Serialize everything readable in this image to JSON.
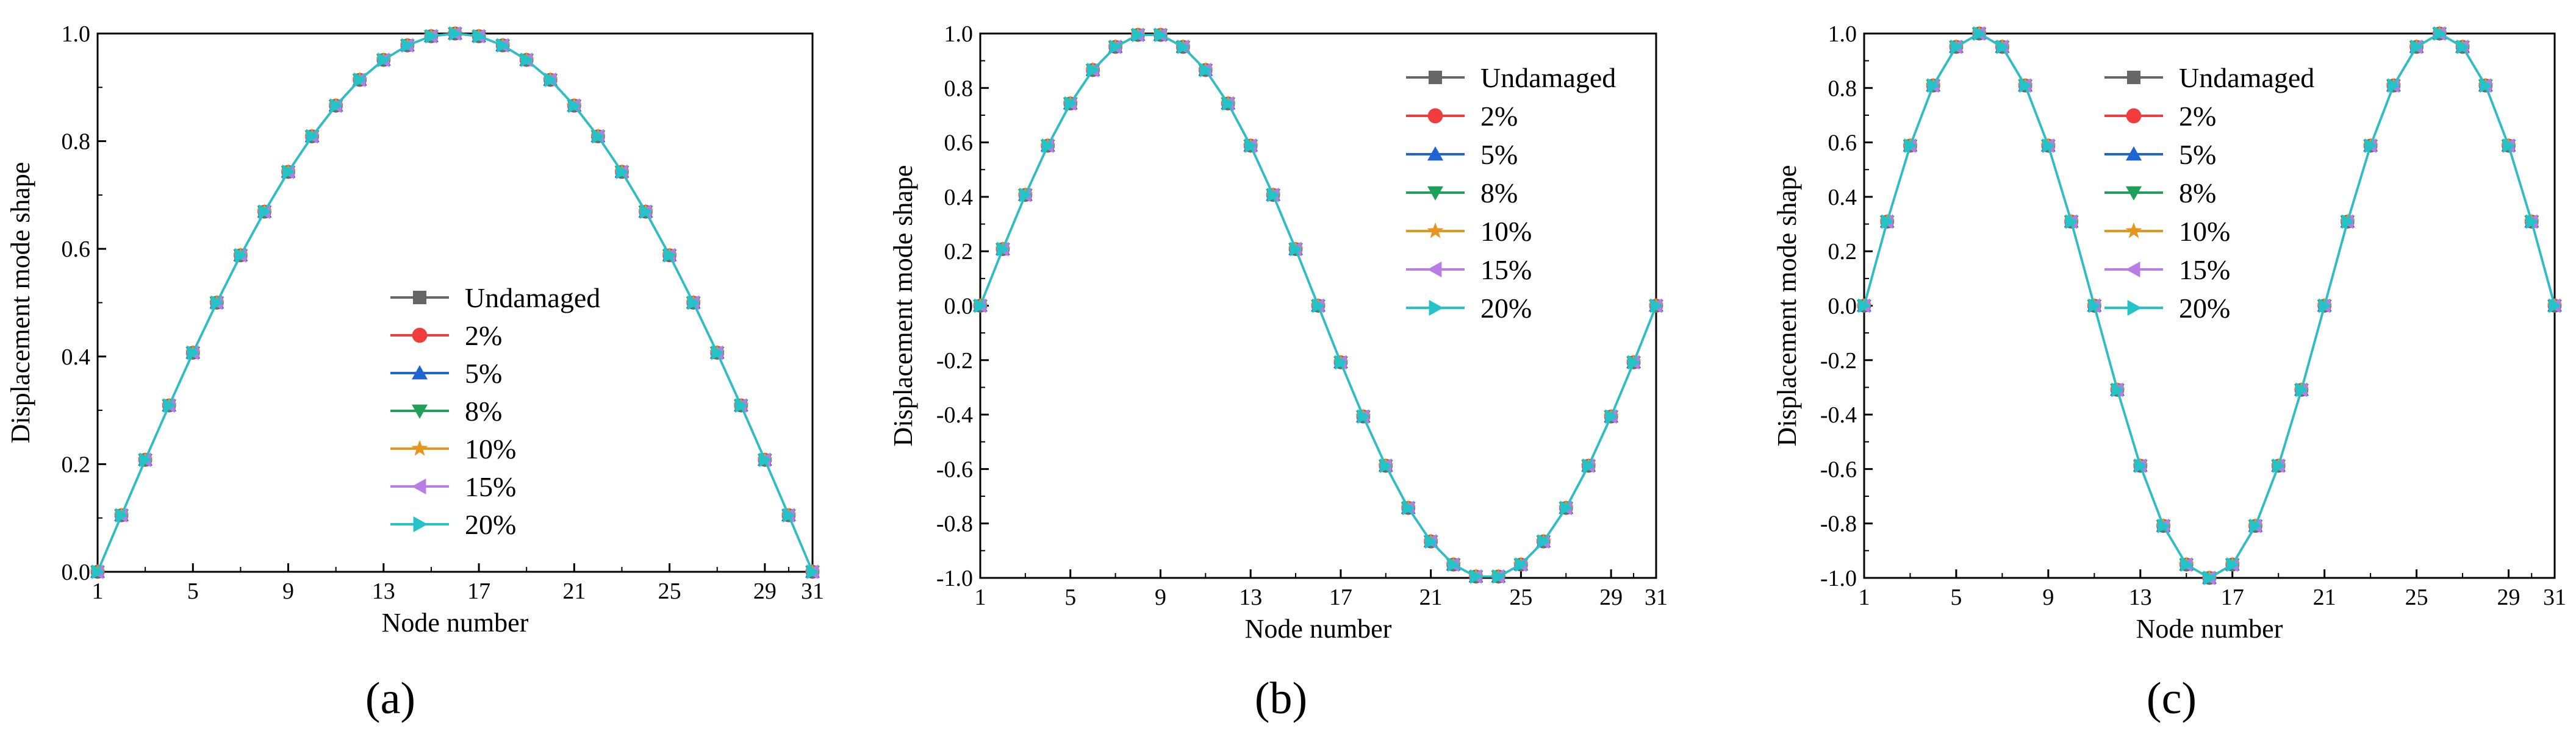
{
  "figure": {
    "panel_labels": [
      "(a)",
      "(b)",
      "(c)"
    ]
  },
  "chart_data": [
    {
      "type": "line",
      "panel": "(a)",
      "xlabel": "Node number",
      "ylabel": "Displacement mode shape",
      "xlim": [
        1,
        31
      ],
      "ylim": [
        0.0,
        1.0
      ],
      "xticks": [
        1,
        5,
        9,
        13,
        17,
        21,
        25,
        29,
        31
      ],
      "yticks": [
        0.0,
        0.2,
        0.4,
        0.6,
        0.8,
        1.0
      ],
      "ytick_labels": [
        "0.0",
        "0.2",
        "0.4",
        "0.6",
        "0.8",
        "1.0"
      ],
      "legend_position": "center-right",
      "x": [
        1,
        2,
        3,
        4,
        5,
        6,
        7,
        8,
        9,
        10,
        11,
        12,
        13,
        14,
        15,
        16,
        17,
        18,
        19,
        20,
        21,
        22,
        23,
        24,
        25,
        26,
        27,
        28,
        29,
        30,
        31
      ],
      "series": [
        {
          "name": "Undamaged",
          "color": "#666666",
          "marker": "square",
          "values": [
            0,
            0.105,
            0.208,
            0.309,
            0.407,
            0.5,
            0.588,
            0.669,
            0.743,
            0.809,
            0.866,
            0.914,
            0.951,
            0.978,
            0.995,
            1.0,
            0.995,
            0.978,
            0.951,
            0.914,
            0.866,
            0.809,
            0.743,
            0.669,
            0.588,
            0.5,
            0.407,
            0.309,
            0.208,
            0.105,
            0
          ]
        },
        {
          "name": "2%",
          "color": "#f03c3c",
          "marker": "circle",
          "values": [
            0,
            0.105,
            0.208,
            0.309,
            0.407,
            0.5,
            0.588,
            0.669,
            0.743,
            0.809,
            0.866,
            0.914,
            0.951,
            0.978,
            0.995,
            1.0,
            0.995,
            0.978,
            0.951,
            0.914,
            0.866,
            0.809,
            0.743,
            0.669,
            0.588,
            0.5,
            0.407,
            0.309,
            0.208,
            0.105,
            0
          ]
        },
        {
          "name": "5%",
          "color": "#1e64d2",
          "marker": "triangle-up",
          "values": [
            0,
            0.105,
            0.208,
            0.309,
            0.407,
            0.5,
            0.588,
            0.669,
            0.743,
            0.809,
            0.866,
            0.914,
            0.951,
            0.978,
            0.995,
            1.0,
            0.995,
            0.978,
            0.951,
            0.914,
            0.866,
            0.809,
            0.743,
            0.669,
            0.588,
            0.5,
            0.407,
            0.309,
            0.208,
            0.105,
            0
          ]
        },
        {
          "name": "8%",
          "color": "#1ea05a",
          "marker": "triangle-down",
          "values": [
            0,
            0.105,
            0.208,
            0.309,
            0.407,
            0.5,
            0.588,
            0.669,
            0.743,
            0.809,
            0.866,
            0.914,
            0.951,
            0.978,
            0.995,
            1.0,
            0.995,
            0.978,
            0.951,
            0.914,
            0.866,
            0.809,
            0.743,
            0.669,
            0.588,
            0.5,
            0.407,
            0.309,
            0.208,
            0.105,
            0
          ]
        },
        {
          "name": "10%",
          "color": "#e6961e",
          "marker": "star",
          "values": [
            0,
            0.105,
            0.208,
            0.309,
            0.407,
            0.5,
            0.588,
            0.669,
            0.743,
            0.809,
            0.866,
            0.914,
            0.951,
            0.978,
            0.995,
            1.0,
            0.995,
            0.978,
            0.951,
            0.914,
            0.866,
            0.809,
            0.743,
            0.669,
            0.588,
            0.5,
            0.407,
            0.309,
            0.208,
            0.105,
            0
          ]
        },
        {
          "name": "15%",
          "color": "#b97ee6",
          "marker": "triangle-left",
          "values": [
            0,
            0.105,
            0.208,
            0.309,
            0.407,
            0.5,
            0.588,
            0.669,
            0.743,
            0.809,
            0.866,
            0.914,
            0.951,
            0.978,
            0.995,
            1.0,
            0.995,
            0.978,
            0.951,
            0.914,
            0.866,
            0.809,
            0.743,
            0.669,
            0.588,
            0.5,
            0.407,
            0.309,
            0.208,
            0.105,
            0
          ]
        },
        {
          "name": "20%",
          "color": "#23c3c8",
          "marker": "triangle-right",
          "values": [
            0,
            0.105,
            0.208,
            0.309,
            0.407,
            0.5,
            0.588,
            0.669,
            0.743,
            0.809,
            0.866,
            0.914,
            0.951,
            0.978,
            0.995,
            1.0,
            0.995,
            0.978,
            0.951,
            0.914,
            0.866,
            0.809,
            0.743,
            0.669,
            0.588,
            0.5,
            0.407,
            0.309,
            0.208,
            0.105,
            0
          ]
        }
      ]
    },
    {
      "type": "line",
      "panel": "(b)",
      "xlabel": "Node number",
      "ylabel": "Displacement mode shape",
      "xlim": [
        1,
        31
      ],
      "ylim": [
        -1.0,
        1.0
      ],
      "xticks": [
        1,
        5,
        9,
        13,
        17,
        21,
        25,
        29,
        31
      ],
      "yticks": [
        -1.0,
        -0.8,
        -0.6,
        -0.4,
        -0.2,
        0.0,
        0.2,
        0.4,
        0.6,
        0.8,
        1.0
      ],
      "ytick_labels": [
        "-1.0",
        "-0.8",
        "-0.6",
        "-0.4",
        "-0.2",
        "0.0",
        "0.2",
        "0.4",
        "0.6",
        "0.8",
        "1.0"
      ],
      "legend_position": "top-right",
      "x": [
        1,
        2,
        3,
        4,
        5,
        6,
        7,
        8,
        9,
        10,
        11,
        12,
        13,
        14,
        15,
        16,
        17,
        18,
        19,
        20,
        21,
        22,
        23,
        24,
        25,
        26,
        27,
        28,
        29,
        30,
        31
      ],
      "series": [
        {
          "name": "Undamaged",
          "color": "#666666",
          "marker": "square",
          "values": [
            0,
            0.208,
            0.407,
            0.588,
            0.743,
            0.866,
            0.951,
            0.995,
            0.995,
            0.951,
            0.866,
            0.743,
            0.588,
            0.407,
            0.208,
            0,
            -0.208,
            -0.407,
            -0.588,
            -0.743,
            -0.866,
            -0.951,
            -0.995,
            -0.995,
            -0.951,
            -0.866,
            -0.743,
            -0.588,
            -0.407,
            -0.208,
            0
          ]
        },
        {
          "name": "2%",
          "color": "#f03c3c",
          "marker": "circle",
          "values": [
            0,
            0.208,
            0.407,
            0.588,
            0.743,
            0.866,
            0.951,
            0.995,
            0.995,
            0.951,
            0.866,
            0.743,
            0.588,
            0.407,
            0.208,
            0,
            -0.208,
            -0.407,
            -0.588,
            -0.743,
            -0.866,
            -0.951,
            -0.995,
            -0.995,
            -0.951,
            -0.866,
            -0.743,
            -0.588,
            -0.407,
            -0.208,
            0
          ]
        },
        {
          "name": "5%",
          "color": "#1e64d2",
          "marker": "triangle-up",
          "values": [
            0,
            0.208,
            0.407,
            0.588,
            0.743,
            0.866,
            0.951,
            0.995,
            0.995,
            0.951,
            0.866,
            0.743,
            0.588,
            0.407,
            0.208,
            0,
            -0.208,
            -0.407,
            -0.588,
            -0.743,
            -0.866,
            -0.951,
            -0.995,
            -0.995,
            -0.951,
            -0.866,
            -0.743,
            -0.588,
            -0.407,
            -0.208,
            0
          ]
        },
        {
          "name": "8%",
          "color": "#1ea05a",
          "marker": "triangle-down",
          "values": [
            0,
            0.208,
            0.407,
            0.588,
            0.743,
            0.866,
            0.951,
            0.995,
            0.995,
            0.951,
            0.866,
            0.743,
            0.588,
            0.407,
            0.208,
            0,
            -0.208,
            -0.407,
            -0.588,
            -0.743,
            -0.866,
            -0.951,
            -0.995,
            -0.995,
            -0.951,
            -0.866,
            -0.743,
            -0.588,
            -0.407,
            -0.208,
            0
          ]
        },
        {
          "name": "10%",
          "color": "#e6961e",
          "marker": "star",
          "values": [
            0,
            0.208,
            0.407,
            0.588,
            0.743,
            0.866,
            0.951,
            0.995,
            0.995,
            0.951,
            0.866,
            0.743,
            0.588,
            0.407,
            0.208,
            0,
            -0.208,
            -0.407,
            -0.588,
            -0.743,
            -0.866,
            -0.951,
            -0.995,
            -0.995,
            -0.951,
            -0.866,
            -0.743,
            -0.588,
            -0.407,
            -0.208,
            0
          ]
        },
        {
          "name": "15%",
          "color": "#b97ee6",
          "marker": "triangle-left",
          "values": [
            0,
            0.208,
            0.407,
            0.588,
            0.743,
            0.866,
            0.951,
            0.995,
            0.995,
            0.951,
            0.866,
            0.743,
            0.588,
            0.407,
            0.208,
            0,
            -0.208,
            -0.407,
            -0.588,
            -0.743,
            -0.866,
            -0.951,
            -0.995,
            -0.995,
            -0.951,
            -0.866,
            -0.743,
            -0.588,
            -0.407,
            -0.208,
            0
          ]
        },
        {
          "name": "20%",
          "color": "#23c3c8",
          "marker": "triangle-right",
          "values": [
            0,
            0.208,
            0.407,
            0.588,
            0.743,
            0.866,
            0.951,
            0.995,
            0.995,
            0.951,
            0.866,
            0.743,
            0.588,
            0.407,
            0.208,
            0,
            -0.208,
            -0.407,
            -0.588,
            -0.743,
            -0.866,
            -0.951,
            -0.995,
            -0.995,
            -0.951,
            -0.866,
            -0.743,
            -0.588,
            -0.407,
            -0.208,
            0
          ]
        }
      ]
    },
    {
      "type": "line",
      "panel": "(c)",
      "xlabel": "Node number",
      "ylabel": "Displacement mode shape",
      "xlim": [
        1,
        31
      ],
      "ylim": [
        -1.0,
        1.0
      ],
      "xticks": [
        1,
        5,
        9,
        13,
        17,
        21,
        25,
        29,
        31
      ],
      "yticks": [
        -1.0,
        -0.8,
        -0.6,
        -0.4,
        -0.2,
        0.0,
        0.2,
        0.4,
        0.6,
        0.8,
        1.0
      ],
      "ytick_labels": [
        "-1.0",
        "-0.8",
        "-0.6",
        "-0.4",
        "-0.2",
        "0.0",
        "0.2",
        "0.4",
        "0.6",
        "0.8",
        "1.0"
      ],
      "legend_position": "top-right",
      "x": [
        1,
        2,
        3,
        4,
        5,
        6,
        7,
        8,
        9,
        10,
        11,
        12,
        13,
        14,
        15,
        16,
        17,
        18,
        19,
        20,
        21,
        22,
        23,
        24,
        25,
        26,
        27,
        28,
        29,
        30,
        31
      ],
      "series": [
        {
          "name": "Undamaged",
          "color": "#666666",
          "marker": "square",
          "values": [
            0,
            0.309,
            0.588,
            0.809,
            0.951,
            1.0,
            0.951,
            0.809,
            0.588,
            0.309,
            0,
            -0.309,
            -0.588,
            -0.809,
            -0.951,
            -1.0,
            -0.951,
            -0.809,
            -0.588,
            -0.309,
            0,
            0.309,
            0.588,
            0.809,
            0.951,
            1.0,
            0.951,
            0.809,
            0.588,
            0.309,
            0
          ]
        },
        {
          "name": "2%",
          "color": "#f03c3c",
          "marker": "circle",
          "values": [
            0,
            0.309,
            0.588,
            0.809,
            0.951,
            1.0,
            0.951,
            0.809,
            0.588,
            0.309,
            0,
            -0.309,
            -0.588,
            -0.809,
            -0.951,
            -1.0,
            -0.951,
            -0.809,
            -0.588,
            -0.309,
            0,
            0.309,
            0.588,
            0.809,
            0.951,
            1.0,
            0.951,
            0.809,
            0.588,
            0.309,
            0
          ]
        },
        {
          "name": "5%",
          "color": "#1e64d2",
          "marker": "triangle-up",
          "values": [
            0,
            0.309,
            0.588,
            0.809,
            0.951,
            1.0,
            0.951,
            0.809,
            0.588,
            0.309,
            0,
            -0.309,
            -0.588,
            -0.809,
            -0.951,
            -1.0,
            -0.951,
            -0.809,
            -0.588,
            -0.309,
            0,
            0.309,
            0.588,
            0.809,
            0.951,
            1.0,
            0.951,
            0.809,
            0.588,
            0.309,
            0
          ]
        },
        {
          "name": "8%",
          "color": "#1ea05a",
          "marker": "triangle-down",
          "values": [
            0,
            0.309,
            0.588,
            0.809,
            0.951,
            1.0,
            0.951,
            0.809,
            0.588,
            0.309,
            0,
            -0.309,
            -0.588,
            -0.809,
            -0.951,
            -1.0,
            -0.951,
            -0.809,
            -0.588,
            -0.309,
            0,
            0.309,
            0.588,
            0.809,
            0.951,
            1.0,
            0.951,
            0.809,
            0.588,
            0.309,
            0
          ]
        },
        {
          "name": "10%",
          "color": "#e6961e",
          "marker": "star",
          "values": [
            0,
            0.309,
            0.588,
            0.809,
            0.951,
            1.0,
            0.951,
            0.809,
            0.588,
            0.309,
            0,
            -0.309,
            -0.588,
            -0.809,
            -0.951,
            -1.0,
            -0.951,
            -0.809,
            -0.588,
            -0.309,
            0,
            0.309,
            0.588,
            0.809,
            0.951,
            1.0,
            0.951,
            0.809,
            0.588,
            0.309,
            0
          ]
        },
        {
          "name": "15%",
          "color": "#b97ee6",
          "marker": "triangle-left",
          "values": [
            0,
            0.309,
            0.588,
            0.809,
            0.951,
            1.0,
            0.951,
            0.809,
            0.588,
            0.309,
            0,
            -0.309,
            -0.588,
            -0.809,
            -0.951,
            -1.0,
            -0.951,
            -0.809,
            -0.588,
            -0.309,
            0,
            0.309,
            0.588,
            0.809,
            0.951,
            1.0,
            0.951,
            0.809,
            0.588,
            0.309,
            0
          ]
        },
        {
          "name": "20%",
          "color": "#23c3c8",
          "marker": "triangle-right",
          "values": [
            0,
            0.309,
            0.588,
            0.809,
            0.951,
            1.0,
            0.951,
            0.809,
            0.588,
            0.309,
            0,
            -0.309,
            -0.588,
            -0.809,
            -0.951,
            -1.0,
            -0.951,
            -0.809,
            -0.588,
            -0.309,
            0,
            0.309,
            0.588,
            0.809,
            0.951,
            1.0,
            0.951,
            0.809,
            0.588,
            0.309,
            0
          ]
        }
      ]
    }
  ]
}
